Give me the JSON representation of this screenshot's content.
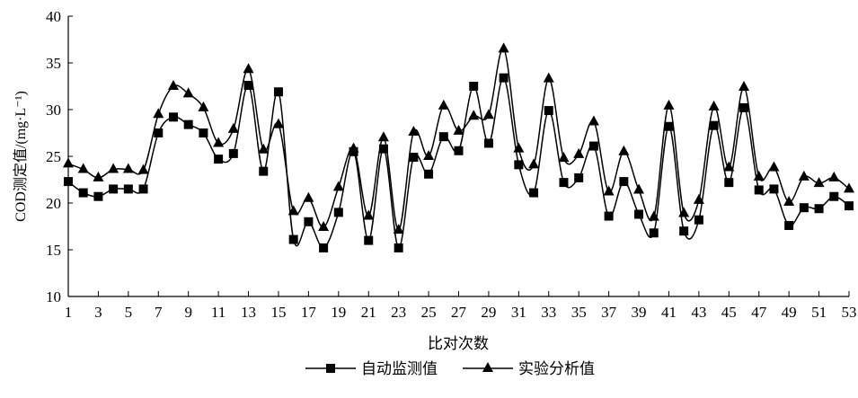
{
  "chart_data": {
    "type": "line",
    "xlabel": "比对次数",
    "ylabel": "COD测定值/(mg·L⁻¹)",
    "ylim": [
      10,
      40
    ],
    "yticks": [
      10,
      15,
      20,
      25,
      30,
      35,
      40
    ],
    "xlim": [
      1,
      53
    ],
    "xticks": [
      1,
      3,
      5,
      7,
      9,
      11,
      13,
      15,
      17,
      19,
      21,
      23,
      25,
      27,
      29,
      31,
      33,
      35,
      37,
      39,
      41,
      43,
      45,
      47,
      49,
      51,
      53
    ],
    "grid": false,
    "legend_position": "bottom",
    "smooth": true,
    "series": [
      {
        "name": "自动监测值",
        "marker": "square",
        "color": "#000000",
        "values": [
          22.3,
          21.1,
          20.7,
          21.5,
          21.5,
          21.5,
          27.5,
          29.2,
          28.4,
          27.5,
          24.7,
          25.3,
          32.6,
          23.4,
          31.9,
          16.1,
          18.0,
          15.2,
          19.0,
          25.5,
          16.0,
          25.8,
          15.2,
          24.9,
          23.1,
          27.1,
          25.6,
          32.5,
          26.4,
          33.4,
          24.1,
          21.1,
          29.9,
          22.2,
          22.7,
          26.1,
          18.6,
          22.3,
          18.8,
          16.8,
          28.2,
          17.0,
          18.2,
          28.3,
          22.2,
          30.2,
          21.4,
          21.5,
          17.6,
          19.5,
          19.4,
          20.7,
          19.7
        ]
      },
      {
        "name": "实验分析值",
        "marker": "triangle",
        "color": "#000000",
        "values": [
          24.2,
          23.6,
          22.7,
          23.6,
          23.6,
          23.5,
          29.5,
          32.5,
          31.7,
          30.2,
          26.4,
          27.9,
          34.3,
          25.7,
          28.4,
          19.1,
          20.5,
          17.4,
          21.7,
          25.8,
          18.6,
          27.0,
          17.1,
          27.6,
          25.0,
          30.4,
          27.7,
          29.3,
          29.4,
          36.5,
          25.8,
          24.1,
          33.3,
          24.8,
          25.2,
          28.7,
          21.2,
          25.5,
          21.4,
          18.5,
          30.4,
          18.9,
          20.3,
          30.3,
          23.8,
          32.4,
          22.8,
          23.8,
          20.1,
          22.8,
          22.1,
          22.7,
          21.5
        ]
      }
    ]
  }
}
